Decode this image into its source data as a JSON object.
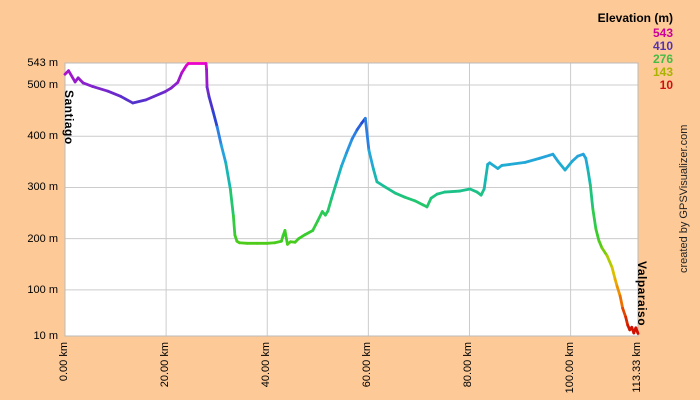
{
  "chart_data": {
    "type": "line",
    "title": "Elevation (m)",
    "x_unit": "km",
    "y_unit": "m",
    "xlim": [
      0,
      113.33
    ],
    "ylim": [
      10,
      543
    ],
    "grid": true,
    "legend": {
      "title": "Elevation (m)",
      "position": "top-right",
      "items": [
        {
          "label": "543",
          "color": "#CC0099"
        },
        {
          "label": "410",
          "color": "#5533AA"
        },
        {
          "label": "276",
          "color": "#44BB44"
        },
        {
          "label": "143",
          "color": "#AAB300"
        },
        {
          "label": "10",
          "color": "#CC1111"
        }
      ]
    },
    "x_ticks": [
      {
        "km": 0,
        "label": "0.00 km"
      },
      {
        "km": 20,
        "label": "20.00 km"
      },
      {
        "km": 40,
        "label": "40.00 km"
      },
      {
        "km": 60,
        "label": "60.00 km"
      },
      {
        "km": 80,
        "label": "80.00 km"
      },
      {
        "km": 100,
        "label": "100.00 km"
      },
      {
        "km": 113.33,
        "label": "113.33 km"
      }
    ],
    "y_ticks": [
      {
        "m": 543,
        "label": "543 m"
      },
      {
        "m": 500,
        "label": "500 m"
      },
      {
        "m": 400,
        "label": "400 m"
      },
      {
        "m": 300,
        "label": "300 m"
      },
      {
        "m": 200,
        "label": "200 m"
      },
      {
        "m": 100,
        "label": "100 m"
      },
      {
        "m": 10,
        "label": "10 m"
      }
    ],
    "annotations": [
      {
        "label": "Santiago",
        "km": 1,
        "anchor": "start"
      },
      {
        "label": "Valparaiso",
        "km": 113.33,
        "anchor": "end"
      }
    ],
    "watermark": "created by GPSVisualizer.com",
    "points": [
      [
        0,
        521
      ],
      [
        0.7,
        528
      ],
      [
        2,
        506
      ],
      [
        2.6,
        514
      ],
      [
        3.6,
        504
      ],
      [
        5.5,
        497
      ],
      [
        8.5,
        488
      ],
      [
        11,
        478
      ],
      [
        13.4,
        465
      ],
      [
        16,
        471
      ],
      [
        19.8,
        487
      ],
      [
        21,
        494
      ],
      [
        22.3,
        505
      ],
      [
        23.1,
        524
      ],
      [
        24,
        538
      ],
      [
        24.4,
        542
      ],
      [
        27.9,
        542
      ],
      [
        28,
        530
      ],
      [
        28.1,
        496
      ],
      [
        28.5,
        477
      ],
      [
        29.3,
        448
      ],
      [
        30.1,
        418
      ],
      [
        30.9,
        383
      ],
      [
        31.8,
        348
      ],
      [
        32.7,
        297
      ],
      [
        33.3,
        245
      ],
      [
        33.6,
        207
      ],
      [
        34,
        195
      ],
      [
        34.5,
        192
      ],
      [
        36,
        191
      ],
      [
        38,
        191
      ],
      [
        40,
        191
      ],
      [
        41.5,
        192
      ],
      [
        42.8,
        195
      ],
      [
        43.1,
        205
      ],
      [
        43.5,
        216
      ],
      [
        44,
        189
      ],
      [
        44.6,
        194
      ],
      [
        45.5,
        193
      ],
      [
        46.2,
        200
      ],
      [
        47.5,
        208
      ],
      [
        49,
        216
      ],
      [
        50,
        235
      ],
      [
        50.9,
        253
      ],
      [
        51.5,
        246
      ],
      [
        52,
        254
      ],
      [
        52.7,
        278
      ],
      [
        53.7,
        310
      ],
      [
        54.7,
        342
      ],
      [
        55.7,
        368
      ],
      [
        56.8,
        395
      ],
      [
        57.8,
        413
      ],
      [
        58.7,
        426
      ],
      [
        59.4,
        435
      ],
      [
        60.1,
        373
      ],
      [
        61,
        336
      ],
      [
        61.7,
        311
      ],
      [
        63.3,
        301
      ],
      [
        65.3,
        289
      ],
      [
        67.2,
        281
      ],
      [
        69.2,
        274
      ],
      [
        70.8,
        266
      ],
      [
        71.6,
        262
      ],
      [
        72.4,
        279
      ],
      [
        73.6,
        287
      ],
      [
        75.1,
        291
      ],
      [
        78.1,
        293
      ],
      [
        80.1,
        297
      ],
      [
        81.5,
        291
      ],
      [
        82.3,
        285
      ],
      [
        82.9,
        297
      ],
      [
        83.6,
        345
      ],
      [
        84,
        348
      ],
      [
        85.6,
        337
      ],
      [
        86.4,
        343
      ],
      [
        88,
        345
      ],
      [
        91,
        349
      ],
      [
        93.9,
        357
      ],
      [
        95.9,
        363
      ],
      [
        96.5,
        365
      ],
      [
        97.5,
        351
      ],
      [
        98.9,
        334
      ],
      [
        100.3,
        351
      ],
      [
        101.4,
        361
      ],
      [
        102.5,
        365
      ],
      [
        103,
        357
      ],
      [
        103.4,
        336
      ],
      [
        103.9,
        305
      ],
      [
        104.4,
        258
      ],
      [
        105,
        219
      ],
      [
        105.6,
        196
      ],
      [
        106.2,
        182
      ],
      [
        107.2,
        167
      ],
      [
        108.2,
        144
      ],
      [
        108.8,
        121
      ],
      [
        109.2,
        107
      ],
      [
        109.8,
        88
      ],
      [
        110.3,
        64
      ],
      [
        110.9,
        47
      ],
      [
        111.3,
        31
      ],
      [
        111.7,
        22
      ],
      [
        112.1,
        27
      ],
      [
        112.5,
        16
      ],
      [
        112.9,
        26
      ],
      [
        113.33,
        15
      ]
    ],
    "colormap": [
      [
        10,
        "#CC0000"
      ],
      [
        45,
        "#DD3300"
      ],
      [
        80,
        "#EE7700"
      ],
      [
        110,
        "#EEA500"
      ],
      [
        135,
        "#D8C400"
      ],
      [
        160,
        "#AACC00"
      ],
      [
        180,
        "#66CC11"
      ],
      [
        200,
        "#3CCC22"
      ],
      [
        230,
        "#33CC44"
      ],
      [
        260,
        "#25C862"
      ],
      [
        290,
        "#1CC285"
      ],
      [
        320,
        "#18B8B0"
      ],
      [
        345,
        "#20ABD4"
      ],
      [
        370,
        "#28A0E0"
      ],
      [
        395,
        "#2C85E4"
      ],
      [
        410,
        "#2C7BE0"
      ],
      [
        430,
        "#2A44D4"
      ],
      [
        465,
        "#4E33CC"
      ],
      [
        500,
        "#8822CC"
      ],
      [
        525,
        "#AA11CC"
      ],
      [
        543,
        "#EE00CC"
      ]
    ],
    "colors": {
      "background": "#FDCA97",
      "plot_background": "#FFFFFF",
      "grid": "#CCCCCC",
      "border": "#BBBBBB",
      "text": "#000000",
      "watermark": "#222222"
    }
  }
}
